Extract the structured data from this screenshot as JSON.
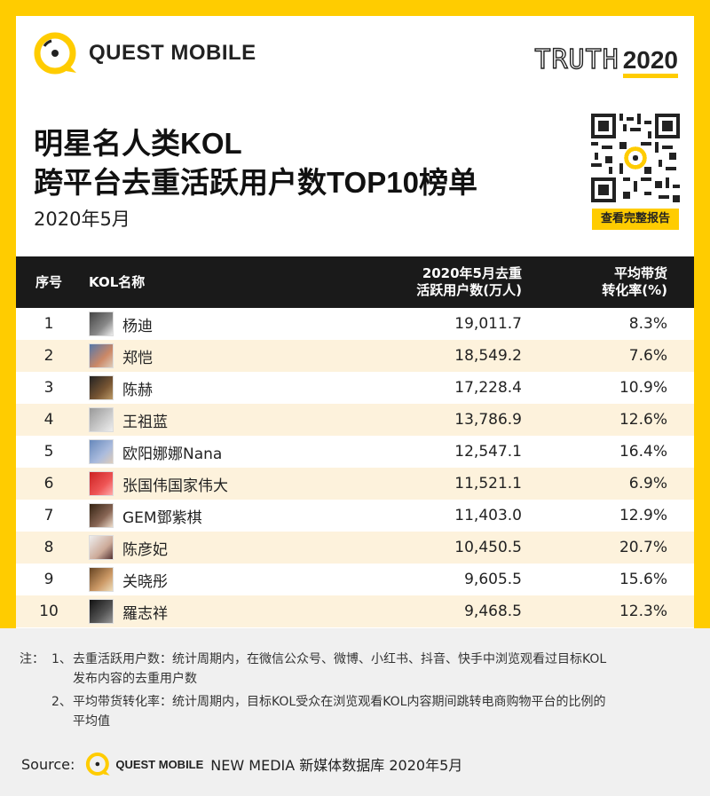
{
  "brand": {
    "logo_text": "QUEST MOBILE",
    "truth_word": "TRUTH",
    "truth_year": "2020"
  },
  "title": {
    "line1": "明星名人类KOL",
    "line2": "跨平台去重活跃用户数TOP10榜单",
    "subtitle": "2020年5月"
  },
  "qr": {
    "button_label": "查看完整报告"
  },
  "table": {
    "headers": {
      "rank": "序号",
      "name": "KOL名称",
      "users_line1": "2020年5月去重",
      "users_line2": "活跃用户数(万人)",
      "rate_line1": "平均带货",
      "rate_line2": "转化率(%)"
    },
    "rows": [
      {
        "rank": "1",
        "name": "杨迪",
        "users": "19,011.7",
        "rate": "8.3%"
      },
      {
        "rank": "2",
        "name": "郑恺",
        "users": "18,549.2",
        "rate": "7.6%"
      },
      {
        "rank": "3",
        "name": "陈赫",
        "users": "17,228.4",
        "rate": "10.9%"
      },
      {
        "rank": "4",
        "name": "王祖蓝",
        "users": "13,786.9",
        "rate": "12.6%"
      },
      {
        "rank": "5",
        "name": "欧阳娜娜Nana",
        "users": "12,547.1",
        "rate": "16.4%"
      },
      {
        "rank": "6",
        "name": "张国伟国家伟大",
        "users": "11,521.1",
        "rate": "6.9%"
      },
      {
        "rank": "7",
        "name": "GEM鄧紫棋",
        "users": "11,403.0",
        "rate": "12.9%"
      },
      {
        "rank": "8",
        "name": "陈彦妃",
        "users": "10,450.5",
        "rate": "20.7%"
      },
      {
        "rank": "9",
        "name": "关晓彤",
        "users": "9,605.5",
        "rate": "15.6%"
      },
      {
        "rank": "10",
        "name": "羅志祥",
        "users": "9,468.5",
        "rate": "12.3%"
      }
    ]
  },
  "notes": {
    "prefix": "注：",
    "n1_num": "1、",
    "n1_line1": "去重活跃用户数：统计周期内，在微信公众号、微博、小红书、抖音、快手中浏览观看过目标KOL",
    "n1_line2": "发布内容的去重用户数",
    "n2_num": "2、",
    "n2_line1": "平均带货转化率：统计周期内，目标KOL受众在浏览观看KOL内容期间跳转电商购物平台的比例的",
    "n2_line2": "平均值"
  },
  "source": {
    "label": "Source:",
    "logo_text": "QUEST MOBILE",
    "rest": "NEW MEDIA 新媒体数据库 2020年5月"
  },
  "colors": {
    "accent": "#ffcc00",
    "header_bg": "#1a1a1a",
    "row_alt": "#fdf2dc",
    "notes_bg": "#f0f0f0"
  }
}
